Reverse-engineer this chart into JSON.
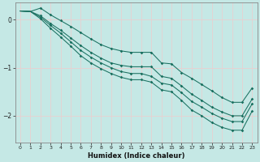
{
  "xlabel": "Humidex (Indice chaleur)",
  "ylabel": "",
  "bg_color": "#c5e8e5",
  "grid_color": "#e8d0d0",
  "line_color": "#1a7060",
  "marker_color": "#1a7060",
  "xlim": [
    -0.5,
    23.5
  ],
  "ylim": [
    -2.55,
    0.35
  ],
  "yticks": [
    0,
    -1,
    -2
  ],
  "xticks": [
    0,
    1,
    2,
    3,
    4,
    5,
    6,
    7,
    8,
    9,
    10,
    11,
    12,
    13,
    14,
    15,
    16,
    17,
    18,
    19,
    20,
    21,
    22,
    23
  ],
  "lines": [
    [
      0.18,
      0.17,
      0.24,
      0.1,
      -0.02,
      -0.14,
      -0.27,
      -0.4,
      -0.52,
      -0.6,
      -0.65,
      -0.68,
      -0.68,
      -0.68,
      -0.9,
      -0.92,
      -1.1,
      -1.22,
      -1.35,
      -1.48,
      -1.62,
      -1.72,
      -1.72,
      -1.42
    ],
    [
      0.18,
      0.17,
      0.08,
      -0.08,
      -0.22,
      -0.38,
      -0.54,
      -0.68,
      -0.8,
      -0.9,
      -0.95,
      -0.98,
      -0.98,
      -0.98,
      -1.18,
      -1.22,
      -1.38,
      -1.55,
      -1.68,
      -1.82,
      -1.92,
      -2.0,
      -2.0,
      -1.65
    ],
    [
      0.18,
      0.17,
      0.05,
      -0.12,
      -0.28,
      -0.46,
      -0.64,
      -0.78,
      -0.9,
      -1.0,
      -1.08,
      -1.12,
      -1.12,
      -1.18,
      -1.32,
      -1.36,
      -1.52,
      -1.7,
      -1.82,
      -1.95,
      -2.05,
      -2.12,
      -2.12,
      -1.75
    ],
    [
      0.18,
      0.17,
      0.02,
      -0.18,
      -0.36,
      -0.55,
      -0.75,
      -0.9,
      -1.02,
      -1.12,
      -1.2,
      -1.25,
      -1.25,
      -1.3,
      -1.46,
      -1.5,
      -1.68,
      -1.88,
      -2.0,
      -2.14,
      -2.24,
      -2.3,
      -2.3,
      -1.9
    ]
  ],
  "marker_lines": [
    0,
    1,
    2,
    3
  ],
  "marker_start": 2,
  "figsize": [
    3.2,
    2.0
  ],
  "dpi": 100
}
